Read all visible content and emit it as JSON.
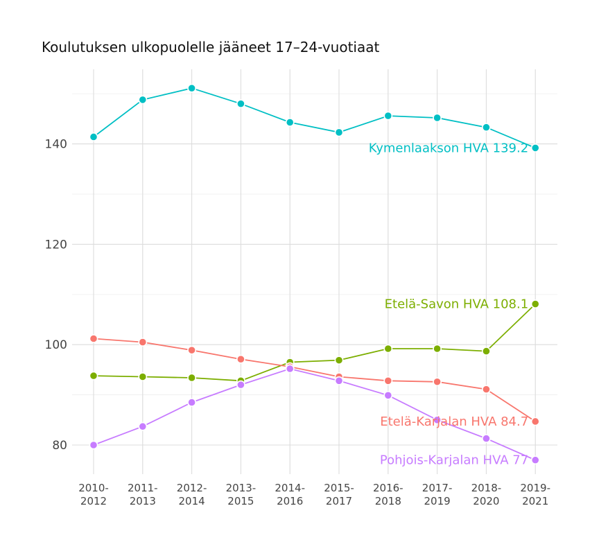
{
  "chart_data": {
    "type": "line",
    "title": "Koulutuksen ulkopuolelle jääneet 17–24-vuotiaat",
    "xlabel": "",
    "ylabel": "",
    "categories": [
      [
        "2010-",
        "2012"
      ],
      [
        "2011-",
        "2013"
      ],
      [
        "2012-",
        "2014"
      ],
      [
        "2013-",
        "2015"
      ],
      [
        "2014-",
        "2016"
      ],
      [
        "2015-",
        "2017"
      ],
      [
        "2016-",
        "2018"
      ],
      [
        "2017-",
        "2019"
      ],
      [
        "2018-",
        "2020"
      ],
      [
        "2019-",
        "2021"
      ]
    ],
    "yticks": [
      80,
      100,
      120,
      140
    ],
    "ylim": [
      74.5,
      154
    ],
    "grid": true,
    "legend": "none",
    "series": [
      {
        "name": "Kymenlaakson HVA",
        "end_label": "Kymenlaakson HVA 139.2",
        "color": "#00bfc4",
        "values": [
          141.4,
          148.8,
          151.1,
          148.0,
          144.3,
          142.3,
          145.6,
          145.2,
          143.3,
          139.2
        ]
      },
      {
        "name": "Etelä-Savon HVA",
        "end_label": "Etelä-Savon HVA 108.1",
        "color": "#7cae00",
        "values": [
          93.8,
          93.6,
          93.4,
          92.8,
          96.5,
          96.9,
          99.2,
          99.2,
          98.7,
          108.1
        ]
      },
      {
        "name": "Etelä-Karjalan HVA",
        "end_label": "Etelä-Karjalan HVA 84.7",
        "color": "#f8766d",
        "values": [
          101.2,
          100.5,
          98.9,
          97.1,
          95.6,
          93.6,
          92.8,
          92.6,
          91.1,
          84.7
        ]
      },
      {
        "name": "Pohjois-Karjalan HVA",
        "end_label": "Pohjois-Karjalan HVA 77",
        "color": "#c77cff",
        "values": [
          80.0,
          83.7,
          88.5,
          92.0,
          95.2,
          92.8,
          89.9,
          85.0,
          81.3,
          77.0
        ]
      }
    ]
  }
}
